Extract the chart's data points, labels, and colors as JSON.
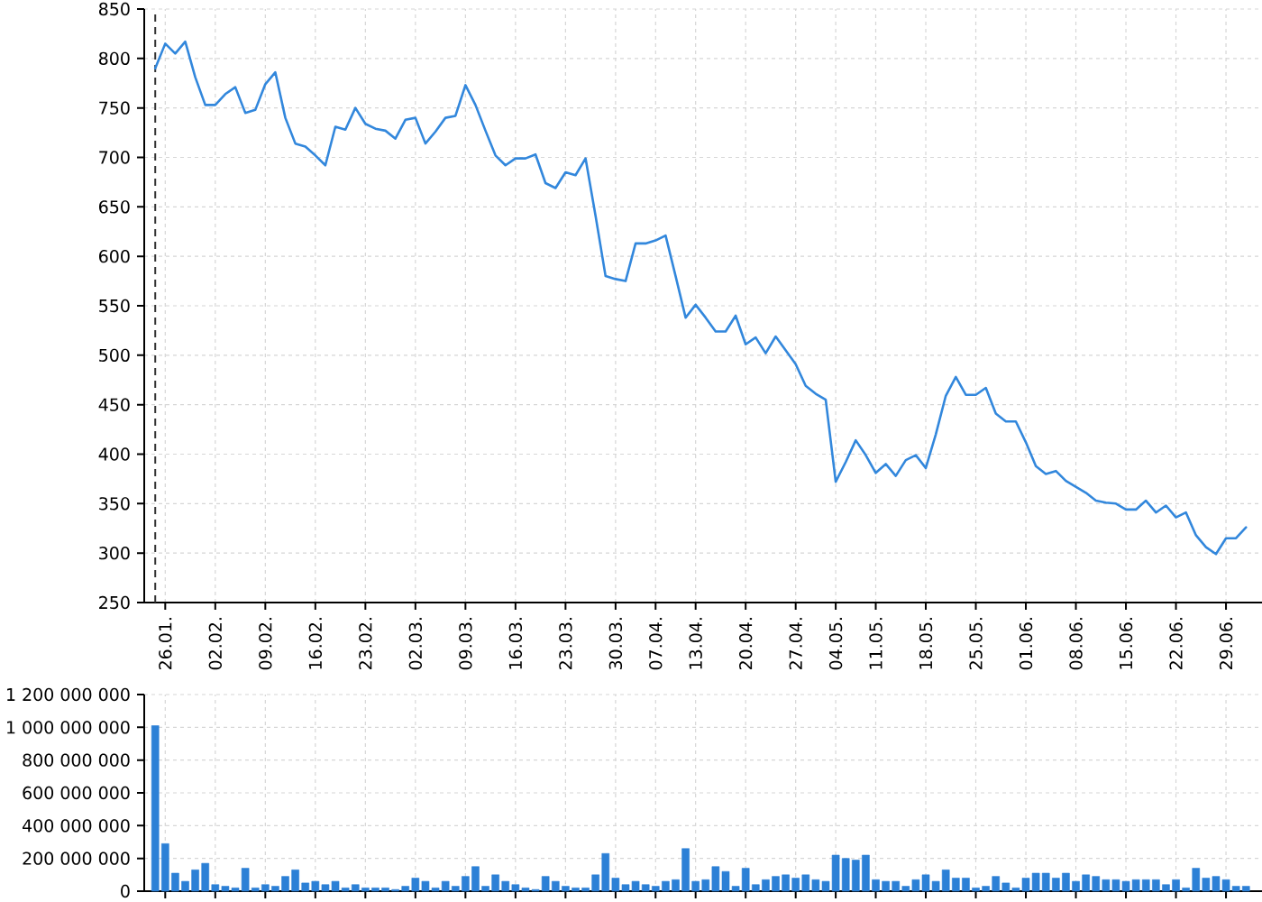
{
  "chart_data": [
    {
      "type": "line",
      "color": "#3287dc",
      "grid": true,
      "categories": [
        null,
        "26.01.",
        null,
        null,
        null,
        null,
        "02.02.",
        null,
        null,
        null,
        null,
        "09.02.",
        null,
        null,
        null,
        null,
        "16.02.",
        null,
        null,
        null,
        null,
        "23.02.",
        null,
        null,
        null,
        null,
        "02.03.",
        null,
        null,
        null,
        null,
        "09.03.",
        null,
        null,
        null,
        null,
        "16.03.",
        null,
        null,
        null,
        null,
        "23.03.",
        null,
        null,
        null,
        null,
        "30.03.",
        null,
        null,
        null,
        "07.04.",
        null,
        null,
        null,
        "13.04.",
        null,
        null,
        null,
        null,
        "20.04.",
        null,
        null,
        null,
        null,
        "27.04.",
        null,
        null,
        null,
        "04.05.",
        null,
        null,
        null,
        "11.05.",
        null,
        null,
        null,
        null,
        "18.05.",
        null,
        null,
        null,
        null,
        "25.05.",
        null,
        null,
        null,
        null,
        "01.06.",
        null,
        null,
        null,
        null,
        "08.06.",
        null,
        null,
        null,
        null,
        "15.06.",
        null,
        null,
        null,
        null,
        "22.06.",
        null,
        null,
        null,
        null,
        "29.06.",
        null,
        null
      ],
      "values": [
        790,
        815,
        805,
        817,
        781,
        753,
        753,
        764,
        771,
        745,
        748,
        774,
        786,
        740,
        714,
        711,
        702,
        692,
        731,
        728,
        750,
        734,
        729,
        727,
        719,
        738,
        740,
        714,
        726,
        740,
        742,
        773,
        753,
        727,
        702,
        692,
        699,
        699,
        703,
        674,
        669,
        685,
        682,
        699,
        641,
        580,
        577,
        575,
        613,
        613,
        616,
        621,
        580,
        538,
        551,
        538,
        524,
        524,
        540,
        511,
        518,
        502,
        519,
        505,
        491,
        469,
        461,
        455,
        372,
        392,
        414,
        399,
        381,
        390,
        378,
        394,
        399,
        386,
        420,
        459,
        478,
        460,
        460,
        467,
        441,
        433,
        433,
        412,
        388,
        380,
        383,
        373,
        367,
        361,
        353,
        351,
        350,
        344,
        344,
        353,
        341,
        348,
        336,
        341,
        318,
        306,
        299,
        315,
        315,
        326
      ],
      "ylim": [
        250,
        850
      ],
      "yticks": [
        250,
        300,
        350,
        400,
        450,
        500,
        550,
        600,
        650,
        700,
        750,
        800,
        850
      ]
    },
    {
      "type": "bar",
      "color": "#2c80d6",
      "grid": true,
      "tick_labels": "y",
      "categories": [
        null,
        "26.01.",
        null,
        null,
        null,
        null,
        "02.02.",
        null,
        null,
        null,
        null,
        "09.02.",
        null,
        null,
        null,
        null,
        "16.02.",
        null,
        null,
        null,
        null,
        "23.02.",
        null,
        null,
        null,
        null,
        "02.03.",
        null,
        null,
        null,
        null,
        "09.03.",
        null,
        null,
        null,
        null,
        "16.03.",
        null,
        null,
        null,
        null,
        "23.03.",
        null,
        null,
        null,
        null,
        "30.03.",
        null,
        null,
        null,
        "07.04.",
        null,
        null,
        null,
        "13.04.",
        null,
        null,
        null,
        null,
        "20.04.",
        null,
        null,
        null,
        null,
        "27.04.",
        null,
        null,
        null,
        "04.05.",
        null,
        null,
        null,
        "11.05.",
        null,
        null,
        null,
        null,
        "18.05.",
        null,
        null,
        null,
        null,
        "25.05.",
        null,
        null,
        null,
        null,
        "01.06.",
        null,
        null,
        null,
        null,
        "08.06.",
        null,
        null,
        null,
        null,
        "15.06.",
        null,
        null,
        null,
        null,
        "22.06.",
        null,
        null,
        null,
        null,
        "29.06.",
        null,
        null
      ],
      "values": [
        1010000000,
        290000000,
        110000000,
        60000000,
        130000000,
        170000000,
        40000000,
        30000000,
        20000000,
        140000000,
        20000000,
        40000000,
        30000000,
        90000000,
        130000000,
        50000000,
        60000000,
        40000000,
        60000000,
        20000000,
        40000000,
        20000000,
        20000000,
        20000000,
        10000000,
        30000000,
        80000000,
        60000000,
        20000000,
        60000000,
        30000000,
        90000000,
        150000000,
        30000000,
        100000000,
        60000000,
        40000000,
        20000000,
        10000000,
        90000000,
        60000000,
        30000000,
        20000000,
        20000000,
        100000000,
        230000000,
        80000000,
        40000000,
        60000000,
        40000000,
        30000000,
        60000000,
        70000000,
        260000000,
        60000000,
        70000000,
        150000000,
        120000000,
        30000000,
        140000000,
        40000000,
        70000000,
        90000000,
        100000000,
        80000000,
        100000000,
        70000000,
        60000000,
        220000000,
        200000000,
        190000000,
        220000000,
        70000000,
        60000000,
        60000000,
        30000000,
        70000000,
        100000000,
        60000000,
        130000000,
        80000000,
        80000000,
        20000000,
        30000000,
        90000000,
        50000000,
        20000000,
        80000000,
        110000000,
        110000000,
        80000000,
        110000000,
        60000000,
        100000000,
        90000000,
        70000000,
        70000000,
        60000000,
        70000000,
        70000000,
        70000000,
        40000000,
        70000000,
        20000000,
        140000000,
        80000000,
        90000000,
        70000000,
        30000000,
        30000000
      ],
      "ylim": [
        0,
        1200000000
      ],
      "yticks": [
        0,
        {
          "value": 200000000,
          "label": "200 000 000"
        },
        {
          "value": 400000000,
          "label": "400 000 000"
        },
        {
          "value": 600000000,
          "label": "600 000 000"
        },
        {
          "value": 800000000,
          "label": "800 000 000"
        },
        {
          "value": 1000000000,
          "label": "1 000 000 000"
        },
        {
          "value": 1200000000,
          "label": "1 200 000 000"
        }
      ]
    }
  ]
}
